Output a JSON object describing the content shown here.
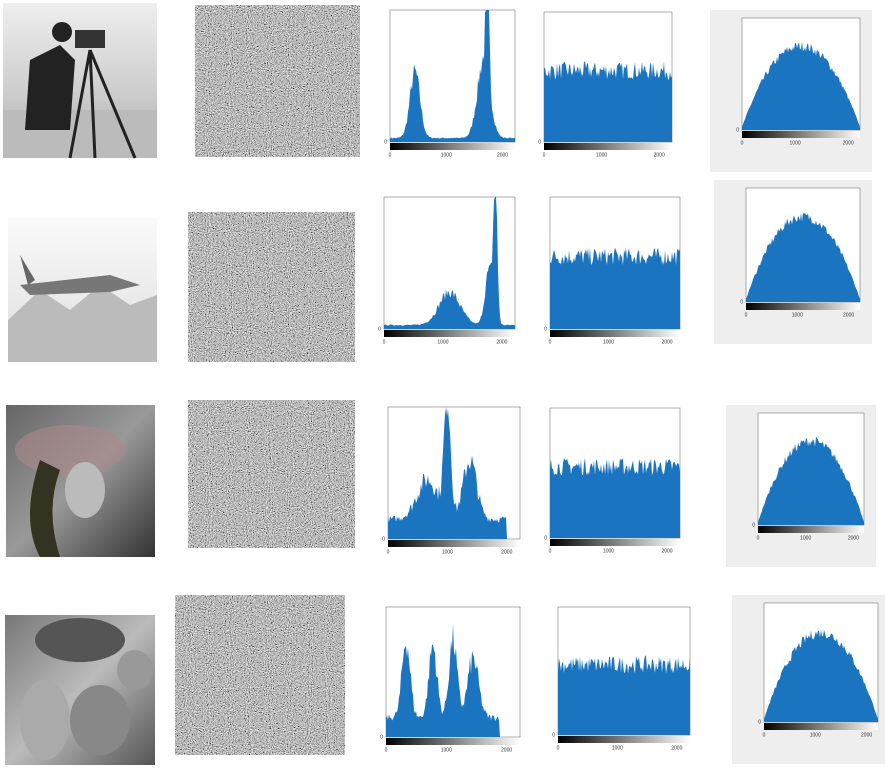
{
  "histogram_x_ticks": [
    "0",
    "1000",
    "2000"
  ],
  "histogram_y_ticks": [
    "0"
  ]
}
